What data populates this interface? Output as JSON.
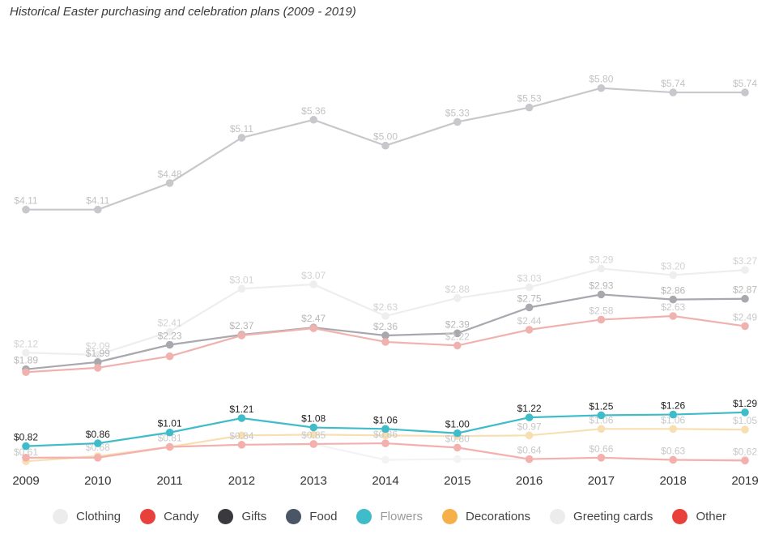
{
  "chart_data": {
    "type": "line",
    "title": "Historical Easter purchasing and celebration plans (2009 - 2019)",
    "categories": [
      "2009",
      "2010",
      "2011",
      "2012",
      "2013",
      "2014",
      "2015",
      "2016",
      "2017",
      "2018",
      "2019"
    ],
    "ylim": [
      0.5,
      6.0
    ],
    "series": [
      {
        "name": "Clothing",
        "color": "#c8c8cc",
        "opacity": 1.0,
        "labelColor": "#c2c2c2",
        "show_labels": true,
        "values": [
          4.11,
          4.11,
          4.48,
          5.11,
          5.36,
          5.0,
          5.33,
          5.53,
          5.8,
          5.74,
          5.74
        ],
        "labels": [
          "$4.11",
          "$4.11",
          "$4.48",
          "$5.11",
          "$5.36",
          "$5.00",
          "$5.33",
          "$5.53",
          "$5.80",
          "$5.74",
          "$5.74"
        ]
      },
      {
        "name": "Greeting cards",
        "color": "#eeeeee",
        "opacity": 1.0,
        "labelColor": "#d2d2d2",
        "show_labels": true,
        "values": [
          2.12,
          2.09,
          2.41,
          3.01,
          3.07,
          2.63,
          2.88,
          3.03,
          3.29,
          3.2,
          3.27
        ],
        "labels": [
          "$2.12",
          "$2.09",
          "$2.41",
          "$3.01",
          "$3.07",
          "$2.63",
          "$2.88",
          "$3.03",
          "$3.29",
          "$3.20",
          "$3.27"
        ]
      },
      {
        "name": "Food",
        "color": "#a8a8ae",
        "opacity": 1.0,
        "labelColor": "#b8b8b8",
        "show_labels": true,
        "values": [
          1.89,
          1.99,
          2.23,
          2.37,
          2.47,
          2.36,
          2.39,
          2.75,
          2.93,
          2.86,
          2.87
        ],
        "labels": [
          "$1.89",
          "$1.99",
          "$2.23",
          "$2.37",
          "$2.47",
          "$2.36",
          "$2.39",
          "$2.75",
          "$2.93",
          "$2.86",
          "$2.87"
        ]
      },
      {
        "name": "Candy",
        "color": "#f0b2ae",
        "opacity": 1.0,
        "labelColor": "#c8c8c8",
        "show_labels": true,
        "values": [
          1.85,
          1.91,
          2.07,
          2.36,
          2.46,
          2.27,
          2.22,
          2.44,
          2.58,
          2.63,
          2.49
        ],
        "labels": [
          "",
          "",
          "",
          "",
          "",
          "",
          "$2.22",
          "$2.44",
          "$2.58",
          "$2.63",
          "$2.49"
        ]
      },
      {
        "name": "Gifts",
        "color": "#f3f3f3",
        "opacity": 1.0,
        "labelColor": "#d0d0d0",
        "show_labels": false,
        "values": [
          0.66,
          0.68,
          0.81,
          0.84,
          0.85,
          0.63,
          0.64,
          0.64,
          0.66,
          0.63,
          0.64
        ],
        "labels": [
          "",
          "",
          "",
          "",
          "",
          "",
          "",
          "",
          "",
          "",
          ""
        ]
      },
      {
        "name": "Decorations",
        "color": "#f8dfb2",
        "opacity": 1.0,
        "labelColor": "#c8c8c8",
        "show_labels": true,
        "values": [
          0.61,
          0.68,
          0.81,
          0.97,
          0.98,
          0.97,
          0.96,
          0.97,
          1.06,
          1.06,
          1.05
        ],
        "labels": [
          "$0.61",
          "$0.68",
          "$0.81",
          "",
          "",
          "",
          "",
          "$0.97",
          "$1.06",
          "$1.06",
          "$1.05"
        ]
      },
      {
        "name": "Other",
        "color": "#f3b0ac",
        "opacity": 1.0,
        "labelColor": "#c8c8c8",
        "show_labels": true,
        "values": [
          0.66,
          0.66,
          0.81,
          0.84,
          0.85,
          0.86,
          0.8,
          0.64,
          0.66,
          0.63,
          0.62
        ],
        "labels": [
          "",
          "",
          "",
          "$0.84",
          "$0.85",
          "$0.86",
          "$0.80",
          "$0.64",
          "$0.66",
          "$0.63",
          "$0.62"
        ]
      },
      {
        "name": "Flowers",
        "color": "#3fbcc9",
        "opacity": 1.0,
        "labelColor": "#222222",
        "show_labels": true,
        "values": [
          0.82,
          0.86,
          1.01,
          1.21,
          1.08,
          1.06,
          1.0,
          1.22,
          1.25,
          1.26,
          1.29
        ],
        "labels": [
          "$0.82",
          "$0.86",
          "$1.01",
          "$1.21",
          "$1.08",
          "$1.06",
          "$1.00",
          "$1.22",
          "$1.25",
          "$1.26",
          "$1.29"
        ]
      }
    ],
    "legend": [
      {
        "label": "Clothing",
        "color": "#ececec",
        "dim": false
      },
      {
        "label": "Candy",
        "color": "#e8413c",
        "dim": false
      },
      {
        "label": "Gifts",
        "color": "#3a3a3e",
        "dim": false
      },
      {
        "label": "Food",
        "color": "#4a5566",
        "dim": false
      },
      {
        "label": "Flowers",
        "color": "#3fbcc9",
        "dim": true
      },
      {
        "label": "Decorations",
        "color": "#f5b04a",
        "dim": false
      },
      {
        "label": "Greeting cards",
        "color": "#ececec",
        "dim": false
      },
      {
        "label": "Other",
        "color": "#e8413c",
        "dim": false
      }
    ]
  }
}
